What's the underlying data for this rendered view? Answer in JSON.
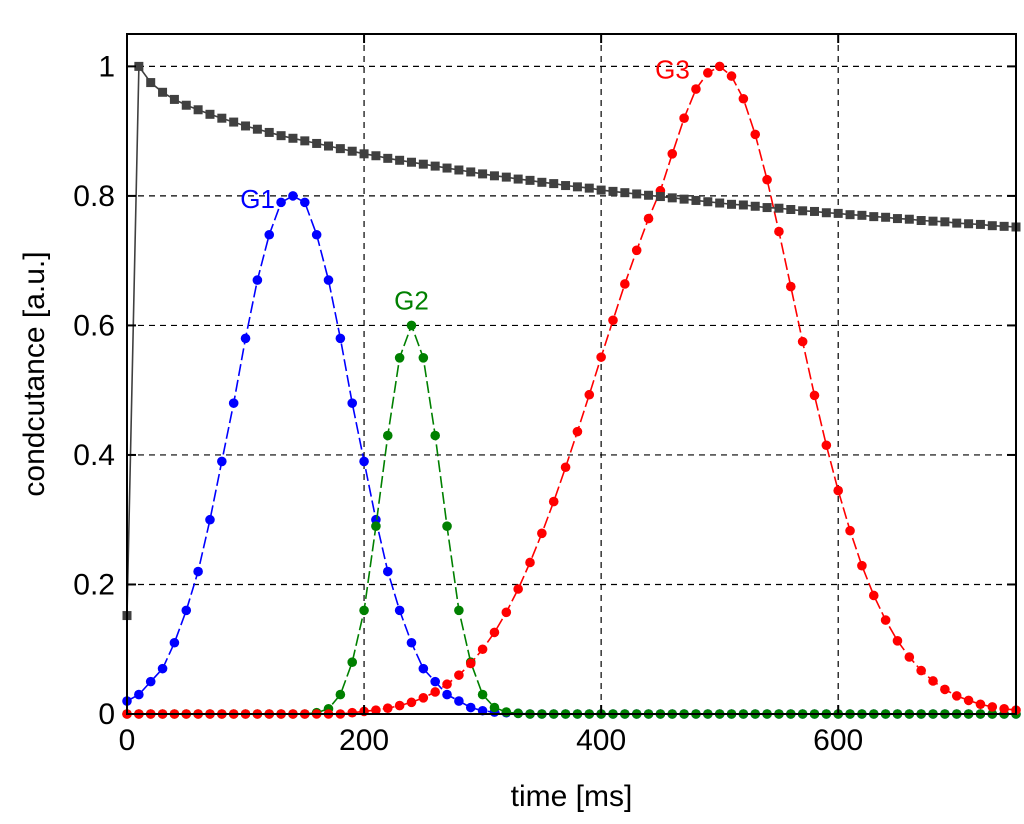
{
  "chart_data": {
    "type": "line",
    "title": "",
    "xlabel": "time [ms]",
    "ylabel": "condcutance [a.u.]",
    "xlim": [
      0,
      750
    ],
    "ylim": [
      0,
      1.05
    ],
    "x_ticks": [
      0,
      200,
      400,
      600
    ],
    "x_tick_labels": [
      "0",
      "200",
      "400",
      "600"
    ],
    "y_ticks": [
      0,
      0.2,
      0.4,
      0.6,
      0.8,
      1
    ],
    "y_tick_labels": [
      "0",
      "0.2",
      "0.4",
      "0.6",
      "0.8",
      "1"
    ],
    "grid": true,
    "legend": "none",
    "series": [
      {
        "name": "",
        "color": "#404040",
        "marker": "square",
        "line": "solid",
        "x": [
          0,
          10,
          20,
          30,
          40,
          50,
          60,
          70,
          80,
          90,
          100,
          110,
          120,
          130,
          140,
          150,
          160,
          170,
          180,
          190,
          200,
          210,
          220,
          230,
          240,
          250,
          260,
          270,
          280,
          290,
          300,
          310,
          320,
          330,
          340,
          350,
          360,
          370,
          380,
          390,
          400,
          410,
          420,
          430,
          440,
          450,
          460,
          470,
          480,
          490,
          500,
          510,
          520,
          530,
          540,
          550,
          560,
          570,
          580,
          590,
          600,
          610,
          620,
          630,
          640,
          650,
          660,
          670,
          680,
          690,
          700,
          710,
          720,
          730,
          740,
          750
        ],
        "y": [
          0.152,
          1.0,
          0.975,
          0.96,
          0.949,
          0.94,
          0.933,
          0.926,
          0.92,
          0.914,
          0.908,
          0.903,
          0.898,
          0.893,
          0.889,
          0.885,
          0.881,
          0.877,
          0.873,
          0.869,
          0.865,
          0.862,
          0.858,
          0.855,
          0.852,
          0.849,
          0.846,
          0.843,
          0.84,
          0.837,
          0.834,
          0.831,
          0.829,
          0.826,
          0.824,
          0.821,
          0.819,
          0.816,
          0.814,
          0.812,
          0.809,
          0.807,
          0.805,
          0.803,
          0.801,
          0.799,
          0.797,
          0.795,
          0.793,
          0.791,
          0.789,
          0.787,
          0.786,
          0.784,
          0.782,
          0.781,
          0.779,
          0.777,
          0.776,
          0.774,
          0.773,
          0.771,
          0.77,
          0.768,
          0.767,
          0.765,
          0.764,
          0.762,
          0.761,
          0.76,
          0.758,
          0.757,
          0.756,
          0.754,
          0.753,
          0.752
        ]
      },
      {
        "name": "G1",
        "color": "#0000ff",
        "marker": "circle",
        "line": "dashed",
        "x": [
          0,
          10,
          20,
          30,
          40,
          50,
          60,
          70,
          80,
          90,
          100,
          110,
          120,
          130,
          140,
          150,
          160,
          170,
          180,
          190,
          200,
          210,
          220,
          230,
          240,
          250,
          260,
          270,
          280,
          290,
          300,
          310,
          320,
          330,
          340,
          350,
          360,
          370,
          380,
          390,
          400,
          410,
          420,
          430,
          440,
          450,
          460,
          470,
          480,
          490,
          500,
          510,
          520,
          530,
          540,
          550,
          560,
          570,
          580,
          590,
          600,
          610,
          620,
          630,
          640,
          650,
          660,
          670,
          680,
          690,
          700,
          710,
          720,
          730,
          740,
          750
        ],
        "y": [
          0.02,
          0.03,
          0.05,
          0.07,
          0.11,
          0.16,
          0.22,
          0.3,
          0.39,
          0.48,
          0.58,
          0.67,
          0.74,
          0.79,
          0.8,
          0.79,
          0.74,
          0.67,
          0.58,
          0.48,
          0.39,
          0.3,
          0.22,
          0.16,
          0.11,
          0.07,
          0.05,
          0.03,
          0.02,
          0.01,
          0.005,
          0.003,
          0.002,
          0.001,
          0,
          0,
          0,
          0,
          0,
          0,
          0,
          0,
          0,
          0,
          0,
          0,
          0,
          0,
          0,
          0,
          0,
          0,
          0,
          0,
          0,
          0,
          0,
          0,
          0,
          0,
          0,
          0,
          0,
          0,
          0,
          0,
          0,
          0,
          0,
          0,
          0,
          0,
          0,
          0,
          0,
          0
        ]
      },
      {
        "name": "G2",
        "color": "#008000",
        "marker": "circle",
        "line": "dashed",
        "x": [
          0,
          10,
          20,
          30,
          40,
          50,
          60,
          70,
          80,
          90,
          100,
          110,
          120,
          130,
          140,
          150,
          160,
          170,
          180,
          190,
          200,
          210,
          220,
          230,
          240,
          250,
          260,
          270,
          280,
          290,
          300,
          310,
          320,
          330,
          340,
          350,
          360,
          370,
          380,
          390,
          400,
          410,
          420,
          430,
          440,
          450,
          460,
          470,
          480,
          490,
          500,
          510,
          520,
          530,
          540,
          550,
          560,
          570,
          580,
          590,
          600,
          610,
          620,
          630,
          640,
          650,
          660,
          670,
          680,
          690,
          700,
          710,
          720,
          730,
          740,
          750
        ],
        "y": [
          0,
          0,
          0,
          0,
          0,
          0,
          0,
          0,
          0,
          0,
          0,
          0,
          0,
          0,
          0,
          0,
          0.002,
          0.008,
          0.03,
          0.08,
          0.16,
          0.29,
          0.43,
          0.55,
          0.6,
          0.55,
          0.43,
          0.29,
          0.16,
          0.08,
          0.03,
          0.01,
          0.003,
          0.001,
          0,
          0,
          0,
          0,
          0,
          0,
          0,
          0,
          0,
          0,
          0,
          0,
          0,
          0,
          0,
          0,
          0,
          0,
          0,
          0,
          0,
          0,
          0,
          0,
          0,
          0,
          0,
          0,
          0,
          0,
          0,
          0,
          0,
          0,
          0,
          0,
          0,
          0,
          0,
          0,
          0,
          0
        ]
      },
      {
        "name": "G3",
        "color": "#ff0000",
        "marker": "circle",
        "line": "dashed",
        "x": [
          0,
          10,
          20,
          30,
          40,
          50,
          60,
          70,
          80,
          90,
          100,
          110,
          120,
          130,
          140,
          150,
          160,
          170,
          180,
          190,
          200,
          210,
          220,
          230,
          240,
          250,
          260,
          270,
          280,
          290,
          300,
          310,
          320,
          330,
          340,
          350,
          360,
          370,
          380,
          390,
          400,
          410,
          420,
          430,
          440,
          450,
          460,
          470,
          480,
          490,
          500,
          510,
          520,
          530,
          540,
          550,
          560,
          570,
          580,
          590,
          600,
          610,
          620,
          630,
          640,
          650,
          660,
          670,
          680,
          690,
          700,
          710,
          720,
          730,
          740,
          750
        ],
        "y": [
          0,
          0,
          0,
          0,
          0,
          0,
          0,
          0,
          0,
          0,
          0,
          0,
          0,
          0,
          0,
          0,
          0,
          0,
          0,
          0.002,
          0.004,
          0.006,
          0.009,
          0.013,
          0.018,
          0.025,
          0.034,
          0.046,
          0.06,
          0.078,
          0.1,
          0.126,
          0.157,
          0.193,
          0.234,
          0.279,
          0.328,
          0.381,
          0.436,
          0.493,
          0.551,
          0.608,
          0.664,
          0.716,
          0.765,
          0.808,
          0.865,
          0.92,
          0.965,
          0.99,
          1.0,
          0.985,
          0.95,
          0.895,
          0.825,
          0.745,
          0.66,
          0.575,
          0.492,
          0.415,
          0.345,
          0.283,
          0.229,
          0.183,
          0.145,
          0.113,
          0.088,
          0.067,
          0.051,
          0.038,
          0.028,
          0.021,
          0.015,
          0.011,
          0.008,
          0.006
        ]
      }
    ],
    "annotations": [
      {
        "text": "G1",
        "x": 140,
        "y": 0.8,
        "color": "#0000ff",
        "anchor": "left"
      },
      {
        "text": "G2",
        "x": 240,
        "y": 0.6,
        "color": "#008000",
        "anchor": "above"
      },
      {
        "text": "G3",
        "x": 490,
        "y": 1.0,
        "color": "#ff0000",
        "anchor": "left"
      }
    ]
  }
}
